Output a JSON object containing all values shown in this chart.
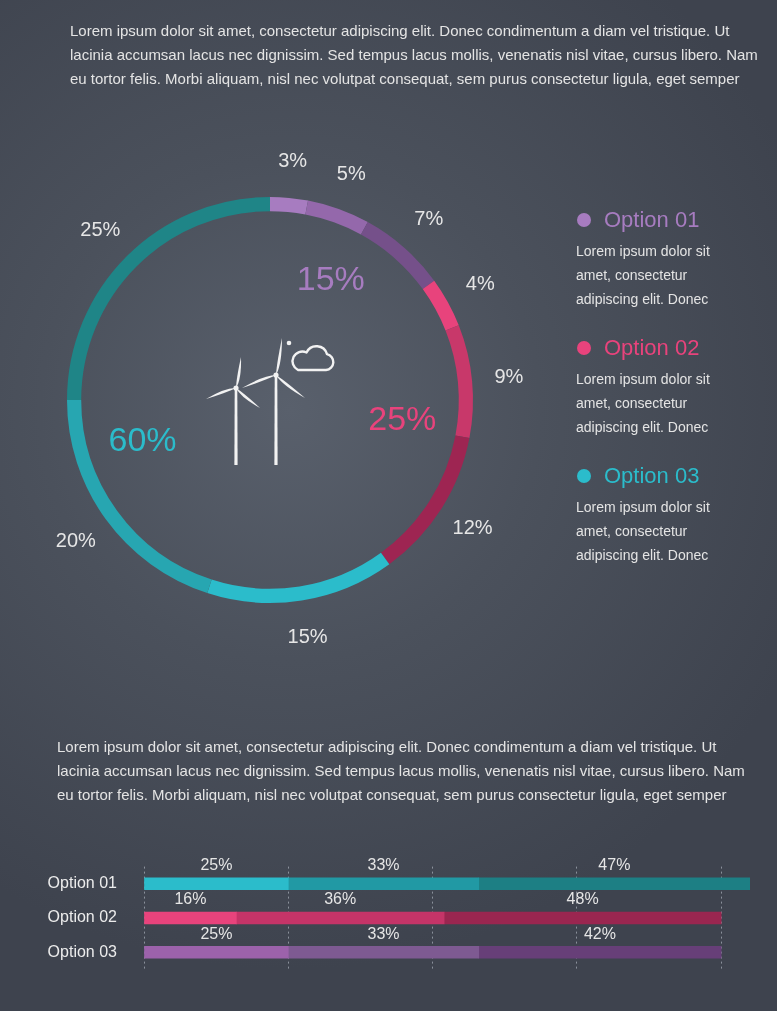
{
  "chart_data": [
    {
      "type": "donut",
      "subtitle": "Lorem ipsum dolor sit amet, consectetur adipiscing elit. Donec condimentum a diam vel tristique. Ut lacinia accumsan lacus nec dignissim. Sed tempus lacus mollis, venenatis nisl vitae, cursus libero. Nam eu tortor felis. Morbi aliquam, nisl nec volutpat consequat, sem purus consectetur ligula, eget semper",
      "categories": [
        null,
        null,
        null,
        null,
        null,
        null,
        null,
        null,
        null
      ],
      "values": [
        3,
        5,
        7,
        4,
        9,
        12,
        15,
        20,
        25
      ],
      "colors": [
        "#a77cc0",
        "#9468ab",
        "#75508a",
        "#e8437c",
        "#c8386a",
        "#9e2552",
        "#2bbccb",
        "#27a6b1",
        "#1f8587"
      ],
      "value_labels": [
        "3%",
        "5%",
        "7%",
        "4%",
        "9%",
        "12%",
        "15%",
        "20%",
        "25%"
      ],
      "annotations": [
        "15%",
        "25%",
        "60%"
      ]
    },
    {
      "type": "other",
      "categories": [
        "Option 01",
        "Option 02",
        "Option 03"
      ],
      "colors": [
        "#a77cc0",
        "#e8437c",
        "#2bbccb"
      ],
      "annotations": [
        "Lorem ipsum dolor sit amet, consectetur adipiscing elit. Donec",
        "Lorem ipsum dolor sit amet, consectetur adipiscing elit. Donec",
        "Lorem ipsum dolor sit amet, consectetur adipiscing elit. Donec"
      ]
    },
    {
      "type": "bar",
      "orientation": "horizontal",
      "stacked": true,
      "subtitle": "Lorem ipsum dolor sit amet, consectetur adipiscing elit. Donec condimentum a diam vel tristique. Ut lacinia accumsan lacus nec dignissim. Sed tempus lacus mollis, venenatis nisl vitae, cursus libero. Nam eu tortor felis. Morbi aliquam, nisl nec volutpat consequat, sem purus consectetur ligula, eget semper",
      "categories": [
        "Option 01",
        "Option 02",
        "Option 03"
      ],
      "series": [
        {
          "colors": [
            "#2bbccb",
            "#e8437c",
            "#9c62ab"
          ],
          "values": [
            25,
            16,
            25
          ],
          "value_labels": [
            "25%",
            "16%",
            "25%"
          ]
        },
        {
          "colors": [
            "#2199a4",
            "#c53468",
            "#7e5a92"
          ],
          "values": [
            33,
            36,
            33
          ],
          "value_labels": [
            "33%",
            "36%",
            "33%"
          ]
        },
        {
          "colors": [
            "#1d7f84",
            "#9a2650",
            "#673f78"
          ],
          "values": [
            47,
            48,
            42
          ],
          "value_labels": [
            "47%",
            "48%",
            "42%"
          ]
        }
      ],
      "xlim": [
        0,
        105
      ],
      "xticks": [
        {
          "value": 0,
          "label": null
        },
        {
          "value": 25,
          "label": null
        },
        {
          "value": 50,
          "label": null
        },
        {
          "value": 75,
          "label": null
        },
        {
          "value": 100,
          "label": null
        }
      ],
      "grid": "x",
      "tick_labels": "y"
    }
  ]
}
